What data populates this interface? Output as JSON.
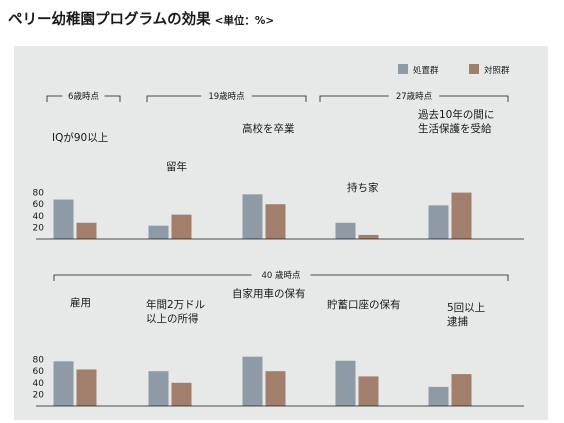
{
  "title": "ペリー幼稚園プログラムの効果",
  "unit": "<単位：%>",
  "colors": {
    "treatment": "#8e9aa6",
    "control": "#a27f6c",
    "panel": "#e7e8e8"
  },
  "legend": [
    {
      "label": "処置群",
      "color": "#8e9aa6"
    },
    {
      "label": "対照群",
      "color": "#a27f6c"
    }
  ],
  "chart_data": [
    {
      "type": "bar",
      "age_groups": [
        "6歳時点",
        "19歳時点",
        "27歳時点"
      ],
      "categories": [
        "IQが90以上",
        "留年",
        "高校を卒業",
        "持ち家",
        "過去10年の間に\n生活保護を受給"
      ],
      "series": [
        {
          "name": "処置群",
          "values": [
            68,
            23,
            77,
            28,
            58
          ]
        },
        {
          "name": "対照群",
          "values": [
            28,
            42,
            60,
            7,
            80
          ]
        }
      ],
      "yticks": [
        20,
        40,
        60,
        80
      ],
      "ylim": [
        0,
        100
      ]
    },
    {
      "type": "bar",
      "age_groups": [
        "40 歳時点"
      ],
      "categories": [
        "雇用",
        "年間2万ドル\n以上の所得",
        "自家用車の保有",
        "貯蓄口座の保有",
        "5回以上\n逮捕"
      ],
      "series": [
        {
          "name": "処置群",
          "values": [
            77,
            60,
            85,
            78,
            33
          ]
        },
        {
          "name": "対照群",
          "values": [
            63,
            40,
            60,
            51,
            55
          ]
        }
      ],
      "yticks": [
        20,
        40,
        60,
        80
      ],
      "ylim": [
        0,
        100
      ]
    }
  ]
}
